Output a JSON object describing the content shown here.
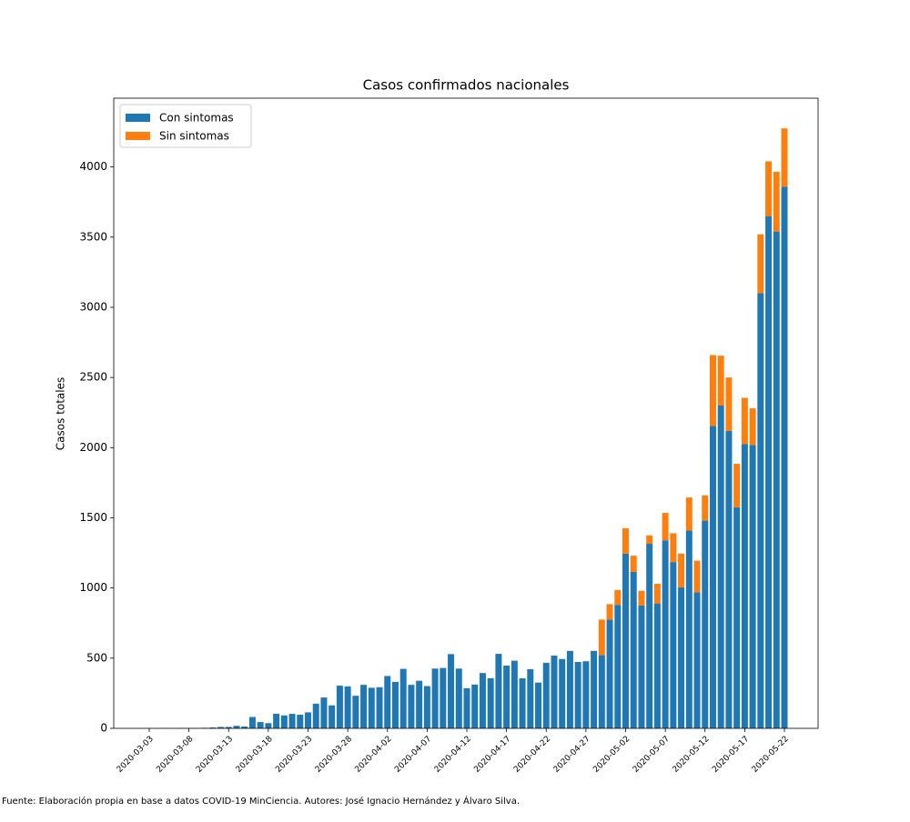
{
  "chart_data": {
    "type": "stacked_bar",
    "title": "Casos confirmados nacionales",
    "ylabel": "Casos totales",
    "source": "Fuente: Elaboración propia en base a datos COVID-19 MinCiencia. Autores: José Ignacio Hernández y Álvaro Silva.",
    "categories": [
      "2020-03-03",
      null,
      null,
      null,
      null,
      "2020-03-08",
      null,
      null,
      null,
      null,
      "2020-03-13",
      null,
      null,
      null,
      null,
      "2020-03-18",
      null,
      null,
      null,
      null,
      "2020-03-23",
      null,
      null,
      null,
      null,
      "2020-03-28",
      null,
      null,
      null,
      null,
      "2020-04-02",
      null,
      null,
      null,
      null,
      "2020-04-07",
      null,
      null,
      null,
      null,
      "2020-04-12",
      null,
      null,
      null,
      null,
      "2020-04-17",
      null,
      null,
      null,
      null,
      "2020-04-22",
      null,
      null,
      null,
      null,
      "2020-04-27",
      null,
      null,
      null,
      null,
      "2020-05-02",
      null,
      null,
      null,
      null,
      "2020-05-07",
      null,
      null,
      null,
      null,
      "2020-05-12",
      null,
      null,
      null,
      null,
      "2020-05-17",
      null,
      null,
      null,
      null,
      "2020-05-22"
    ],
    "series": [
      {
        "name": "Con sintomas",
        "color": "#1f77b4",
        "values": [
          1,
          0,
          2,
          1,
          3,
          3,
          3,
          4,
          6,
          10,
          10,
          18,
          13,
          81,
          45,
          37,
          104,
          92,
          103,
          97,
          114,
          176,
          220,
          164,
          304,
          299,
          232,
          310,
          289,
          293,
          373,
          331,
          424,
          310,
          339,
          301,
          426,
          430,
          529,
          426,
          286,
          312,
          394,
          357,
          531,
          447,
          482,
          357,
          421,
          326,
          467,
          518,
          494,
          552,
          473,
          478,
          552,
          521,
          775,
          880,
          1245,
          1115,
          875,
          1315,
          890,
          1340,
          1185,
          1005,
          1410,
          970,
          1480,
          2155,
          2300,
          2120,
          1575,
          2025,
          2020,
          3100,
          3650,
          3540,
          3860
        ]
      },
      {
        "name": "Sin sintomas",
        "color": "#ff7f0e",
        "values": [
          0,
          0,
          0,
          0,
          0,
          0,
          0,
          0,
          0,
          0,
          0,
          0,
          0,
          0,
          0,
          0,
          0,
          0,
          0,
          0,
          0,
          0,
          0,
          0,
          0,
          0,
          0,
          0,
          0,
          0,
          0,
          0,
          0,
          0,
          0,
          0,
          0,
          0,
          0,
          0,
          0,
          0,
          0,
          0,
          0,
          0,
          0,
          0,
          0,
          0,
          0,
          0,
          0,
          0,
          0,
          0,
          0,
          254,
          110,
          105,
          180,
          115,
          105,
          60,
          140,
          195,
          205,
          240,
          235,
          225,
          180,
          505,
          355,
          380,
          310,
          330,
          260,
          420,
          390,
          425,
          415
        ]
      }
    ],
    "ylim": [
      0,
      4490
    ],
    "yticks": [
      0,
      500,
      1000,
      1500,
      2000,
      2500,
      3000,
      3500,
      4000
    ],
    "legend": "upper left",
    "grid": false
  }
}
